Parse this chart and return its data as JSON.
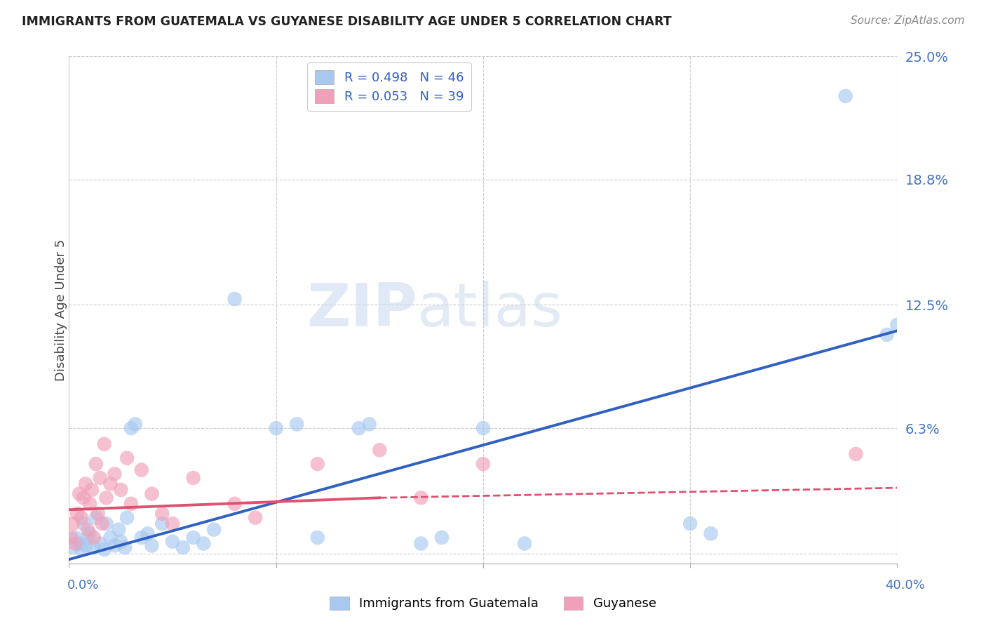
{
  "title": "IMMIGRANTS FROM GUATEMALA VS GUYANESE DISABILITY AGE UNDER 5 CORRELATION CHART",
  "source": "Source: ZipAtlas.com",
  "ylabel": "Disability Age Under 5",
  "ytick_values": [
    0.0,
    6.3,
    12.5,
    18.8,
    25.0
  ],
  "ytick_labels": [
    "",
    "6.3%",
    "12.5%",
    "18.8%",
    "25.0%"
  ],
  "xlim": [
    0.0,
    40.0
  ],
  "ylim": [
    -0.5,
    25.0
  ],
  "color_blue": "#A8C8F0",
  "color_pink": "#F0A0B8",
  "color_blue_line": "#3060C0",
  "color_pink_line": "#E05070",
  "watermark_zip": "ZIP",
  "watermark_atlas": "atlas",
  "scatter_blue": [
    [
      0.2,
      0.3
    ],
    [
      0.3,
      0.8
    ],
    [
      0.5,
      0.5
    ],
    [
      0.6,
      0.2
    ],
    [
      0.7,
      1.5
    ],
    [
      0.8,
      0.4
    ],
    [
      0.9,
      0.8
    ],
    [
      1.0,
      1.0
    ],
    [
      1.2,
      0.3
    ],
    [
      1.3,
      1.8
    ],
    [
      1.5,
      0.5
    ],
    [
      1.7,
      0.2
    ],
    [
      1.8,
      1.5
    ],
    [
      2.0,
      0.8
    ],
    [
      2.2,
      0.4
    ],
    [
      2.4,
      1.2
    ],
    [
      2.5,
      0.6
    ],
    [
      2.7,
      0.3
    ],
    [
      2.8,
      1.8
    ],
    [
      3.0,
      6.3
    ],
    [
      3.2,
      6.5
    ],
    [
      3.5,
      0.8
    ],
    [
      3.8,
      1.0
    ],
    [
      4.0,
      0.4
    ],
    [
      4.5,
      1.5
    ],
    [
      5.0,
      0.6
    ],
    [
      5.5,
      0.3
    ],
    [
      6.0,
      0.8
    ],
    [
      6.5,
      0.5
    ],
    [
      7.0,
      1.2
    ],
    [
      8.0,
      12.8
    ],
    [
      10.0,
      6.3
    ],
    [
      11.0,
      6.5
    ],
    [
      12.0,
      0.8
    ],
    [
      14.0,
      6.3
    ],
    [
      14.5,
      6.5
    ],
    [
      17.0,
      0.5
    ],
    [
      18.0,
      0.8
    ],
    [
      20.0,
      6.3
    ],
    [
      22.0,
      0.5
    ],
    [
      30.0,
      1.5
    ],
    [
      31.0,
      1.0
    ],
    [
      37.5,
      23.0
    ],
    [
      39.5,
      11.0
    ],
    [
      40.0,
      11.5
    ]
  ],
  "scatter_pink": [
    [
      0.1,
      0.8
    ],
    [
      0.2,
      1.5
    ],
    [
      0.3,
      0.5
    ],
    [
      0.4,
      2.0
    ],
    [
      0.5,
      3.0
    ],
    [
      0.6,
      1.8
    ],
    [
      0.7,
      2.8
    ],
    [
      0.8,
      3.5
    ],
    [
      0.9,
      1.2
    ],
    [
      1.0,
      2.5
    ],
    [
      1.1,
      3.2
    ],
    [
      1.2,
      0.8
    ],
    [
      1.3,
      4.5
    ],
    [
      1.4,
      2.0
    ],
    [
      1.5,
      3.8
    ],
    [
      1.6,
      1.5
    ],
    [
      1.7,
      5.5
    ],
    [
      1.8,
      2.8
    ],
    [
      2.0,
      3.5
    ],
    [
      2.2,
      4.0
    ],
    [
      2.5,
      3.2
    ],
    [
      2.8,
      4.8
    ],
    [
      3.0,
      2.5
    ],
    [
      3.5,
      4.2
    ],
    [
      4.0,
      3.0
    ],
    [
      4.5,
      2.0
    ],
    [
      5.0,
      1.5
    ],
    [
      6.0,
      3.8
    ],
    [
      8.0,
      2.5
    ],
    [
      9.0,
      1.8
    ],
    [
      12.0,
      4.5
    ],
    [
      15.0,
      5.2
    ],
    [
      17.0,
      2.8
    ],
    [
      20.0,
      4.5
    ],
    [
      38.0,
      5.0
    ]
  ],
  "blue_line": {
    "x0": 0.0,
    "y0": -0.3,
    "x1": 40.0,
    "y1": 11.2
  },
  "pink_line_solid": {
    "x0": 0.0,
    "y0": 2.2,
    "x1": 15.0,
    "y1": 2.8
  },
  "pink_line_dashed": {
    "x0": 15.0,
    "y0": 2.8,
    "x1": 40.0,
    "y1": 3.3
  },
  "legend_blue_label": "R = 0.498   N = 46",
  "legend_pink_label": "R = 0.053   N = 39"
}
